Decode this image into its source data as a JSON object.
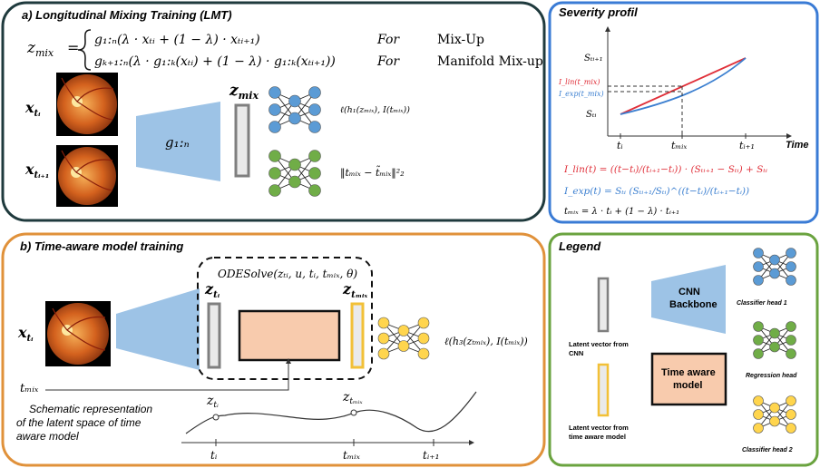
{
  "panel_a": {
    "title": "a)  Longitudinal Mixing Training (LMT)",
    "eq_lhs": "z",
    "eq_lhs_sub": "mix",
    "eq_eq": "=",
    "eq_row1": "g₁:ₙ(λ · xₜᵢ + (1 − λ) · xₜᵢ₊₁)",
    "eq_row2": "gₖ₊₁:ₙ(λ · g₁:ₖ(xₜᵢ) + (1 − λ) · g₁:ₖ(xₜᵢ₊₁))",
    "for1": "For",
    "for2": "For",
    "mix1": "Mix-Up",
    "mix2": "Manifold Mix-up",
    "x_top": "x",
    "x_top_sub": "tᵢ",
    "x_bot": "x",
    "x_bot_sub": "tᵢ₊₁",
    "encoder": "g₁:ₙ",
    "z": "z",
    "z_sub": "mix",
    "loss1": "ℓ(h₁(zₘᵢₓ), I(tₘᵢₓ))",
    "loss2": "‖tₘᵢₓ − t̃ₘᵢₓ‖²₂"
  },
  "panel_b": {
    "title": "b)  Time-aware model training",
    "ode": "ODESolve(zₜᵢ, u, tᵢ, tₘᵢₓ, θ)",
    "x": "x",
    "x_sub": "tᵢ",
    "z1": "z",
    "z1_sub": "tᵢ",
    "z2": "z",
    "z2_sub": "tₘᵢₓ",
    "loss3": "ℓ(h₃(zₜₘᵢₓ), I(tₘᵢₓ))",
    "tmix": "tₘᵢₓ",
    "schematic": [
      "Schematic representation",
      "of the latent space of time",
      "aware model"
    ],
    "curve_z1": "z",
    "curve_z1_sub": "tᵢ",
    "curve_z2": "z",
    "curve_z2_sub": "tₘᵢₓ",
    "axis_ti": "tᵢ",
    "axis_tmix": "tₘᵢₓ",
    "axis_ti1": "tᵢ₊₁"
  },
  "panel_c": {
    "title": "Severity profil",
    "s_ti1": "Sₜᵢ₊₁",
    "s_ti": "Sₜᵢ",
    "ilin_lbl": "I_lin(t_mix)",
    "iexp_lbl": "I_exp(t_mix)",
    "t_i": "tᵢ",
    "t_mix": "tₘᵢₓ",
    "t_i1": "tᵢ₊₁",
    "time": "Time",
    "eq_lin": "I_lin(t) = ((t−tᵢ)/(tᵢ₊₁−tᵢ)) · (Sₜᵢ₊₁ − Sₜᵢ) + Sₜᵢ",
    "eq_exp": "I_exp(t) = Sₜᵢ (Sₜᵢ₊₁/Sₜᵢ)^((t−tᵢ)/(tᵢ₊₁−tᵢ))",
    "eq_tmix": "tₘᵢₓ = λ · tᵢ + (1 − λ) · tᵢ₊₁",
    "color_lin": "#e0303a",
    "color_exp": "#3b7fd0"
  },
  "legend": {
    "title": "Legend",
    "latent_cnn": [
      "Latent vector from",
      "CNN"
    ],
    "latent_time": [
      "Latent vector from",
      "time aware model"
    ],
    "cnn_backbone": [
      "CNN",
      "Backbone"
    ],
    "time_model": [
      "Time aware",
      "model"
    ],
    "classifier1": "Classifier head  1",
    "regression": "Regression head",
    "classifier2": "Classifier head  2"
  },
  "colors": {
    "panel_a_border": "#1f3a3d",
    "panel_b_border": "#e0913a",
    "panel_c_border": "#3a7bd5",
    "legend_border": "#6aa33f",
    "blue_node": "#5b9bd5",
    "green_node": "#70ad47",
    "yellow_node": "#ffd54d",
    "encoder_fill": "#9dc3e6",
    "time_model_fill": "#f8cbad",
    "latent_gray": "#7f7f7f",
    "latent_yellow": "#f2c037"
  }
}
